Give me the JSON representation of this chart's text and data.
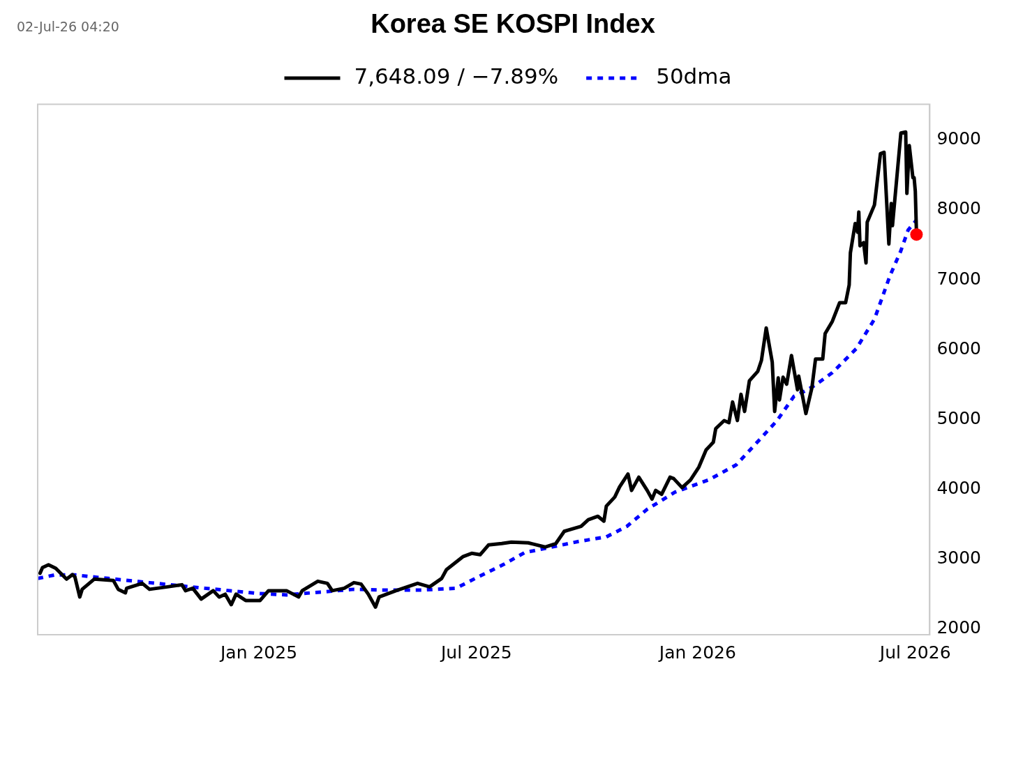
{
  "chart_data": {
    "type": "line",
    "title": "Korea SE KOSPI Index",
    "annotations": [
      "02-Jul-26 04:20"
    ],
    "legend": "top",
    "grid": false,
    "marker": "none",
    "xlim": [
      "2024-07-01",
      "2026-07-13"
    ],
    "xticks": [
      {
        "value": "2025-01-01",
        "label": "Jan 2025"
      },
      {
        "value": "2025-07-01",
        "label": "Jul 2025"
      },
      {
        "value": "2026-01-01",
        "label": "Jan 2026"
      },
      {
        "value": "2026-07-01",
        "label": "Jul 2026"
      }
    ],
    "ylim": [
      1920,
      9510
    ],
    "yticks": [
      2000,
      3000,
      4000,
      5000,
      6000,
      7000,
      8000,
      9000
    ],
    "series": [
      {
        "name": "7,648.09 / −7.89%",
        "color": "#000000",
        "line_style": "solid",
        "x": [
          "2024-07-03",
          "2024-07-05",
          "2024-07-10",
          "2024-07-16",
          "2024-07-25",
          "2024-07-30",
          "2024-08-01",
          "2024-08-05",
          "2024-08-07",
          "2024-08-17",
          "2024-09-02",
          "2024-09-06",
          "2024-09-12",
          "2024-09-13",
          "2024-09-26",
          "2024-10-02",
          "2024-10-17",
          "2024-10-29",
          "2024-11-01",
          "2024-11-07",
          "2024-11-14",
          "2024-11-24",
          "2024-11-29",
          "2024-12-04",
          "2024-12-09",
          "2024-12-13",
          "2024-12-21",
          "2025-01-02",
          "2025-01-09",
          "2025-01-24",
          "2025-02-03",
          "2025-02-06",
          "2025-02-19",
          "2025-02-27",
          "2025-03-03",
          "2025-03-13",
          "2025-03-21",
          "2025-03-27",
          "2025-04-02",
          "2025-04-08",
          "2025-04-11",
          "2025-04-25",
          "2025-05-13",
          "2025-05-23",
          "2025-06-02",
          "2025-06-06",
          "2025-06-20",
          "2025-06-27",
          "2025-07-04",
          "2025-07-11",
          "2025-07-22",
          "2025-07-30",
          "2025-08-13",
          "2025-08-27",
          "2025-09-05",
          "2025-09-12",
          "2025-09-26",
          "2025-10-02",
          "2025-10-10",
          "2025-10-15",
          "2025-10-17",
          "2025-10-24",
          "2025-10-28",
          "2025-11-04",
          "2025-11-07",
          "2025-11-13",
          "2025-11-20",
          "2025-11-24",
          "2025-11-27",
          "2025-12-02",
          "2025-12-09",
          "2025-12-12",
          "2025-12-19",
          "2025-12-26",
          "2026-01-02",
          "2026-01-08",
          "2026-01-14",
          "2026-01-16",
          "2026-01-23",
          "2026-01-27",
          "2026-01-30",
          "2026-02-03",
          "2026-02-06",
          "2026-02-09",
          "2026-02-13",
          "2026-02-20",
          "2026-02-23",
          "2026-02-27",
          "2026-03-04",
          "2026-03-06",
          "2026-03-09",
          "2026-03-10",
          "2026-03-13",
          "2026-03-16",
          "2026-03-20",
          "2026-03-25",
          "2026-03-26",
          "2026-04-01",
          "2026-04-06",
          "2026-04-09",
          "2026-04-15",
          "2026-04-17",
          "2026-04-23",
          "2026-04-29",
          "2026-05-04",
          "2026-05-07",
          "2026-05-08",
          "2026-05-12",
          "2026-05-14",
          "2026-05-15",
          "2026-05-16",
          "2026-05-19",
          "2026-05-21",
          "2026-05-22",
          "2026-05-28",
          "2026-05-29",
          "2026-06-02",
          "2026-06-05",
          "2026-06-09",
          "2026-06-11",
          "2026-06-12",
          "2026-06-19",
          "2026-06-23",
          "2026-06-24",
          "2026-06-26",
          "2026-06-29",
          "2026-06-30",
          "2026-07-01",
          "2026-07-02"
        ],
        "values": [
          2800,
          2880,
          2920,
          2870,
          2715,
          2780,
          2745,
          2460,
          2570,
          2715,
          2695,
          2570,
          2520,
          2585,
          2655,
          2570,
          2605,
          2635,
          2550,
          2585,
          2430,
          2550,
          2460,
          2500,
          2350,
          2500,
          2410,
          2410,
          2550,
          2550,
          2460,
          2550,
          2685,
          2655,
          2550,
          2585,
          2665,
          2645,
          2500,
          2315,
          2460,
          2550,
          2655,
          2605,
          2725,
          2850,
          3040,
          3085,
          3065,
          3205,
          3225,
          3245,
          3235,
          3175,
          3225,
          3400,
          3470,
          3565,
          3615,
          3545,
          3760,
          3890,
          4035,
          4220,
          3985,
          4175,
          3985,
          3860,
          3985,
          3930,
          4175,
          4155,
          4025,
          4135,
          4320,
          4565,
          4675,
          4870,
          4985,
          4955,
          5250,
          4985,
          5360,
          5115,
          5555,
          5690,
          5845,
          6310,
          5820,
          5115,
          5595,
          5280,
          5605,
          5505,
          5915,
          5425,
          5620,
          5085,
          5455,
          5865,
          5865,
          6230,
          6405,
          6670,
          6670,
          6925,
          7385,
          7805,
          7680,
          7970,
          7485,
          7530,
          7240,
          7825,
          8070,
          8215,
          8805,
          8825,
          7510,
          8090,
          7775,
          9100,
          9115,
          8235,
          8920,
          8460,
          8460,
          8265,
          7648.09
        ]
      },
      {
        "name": "50dma",
        "color": "#0000ff",
        "line_style": "dotted",
        "x": [
          "2024-07-01",
          "2024-07-15",
          "2024-08-01",
          "2024-08-29",
          "2024-10-02",
          "2024-11-17",
          "2025-01-01",
          "2025-01-24",
          "2025-02-21",
          "2025-03-21",
          "2025-04-13",
          "2025-05-17",
          "2025-06-14",
          "2025-07-01",
          "2025-07-24",
          "2025-08-10",
          "2025-08-27",
          "2025-09-24",
          "2025-10-17",
          "2025-11-03",
          "2025-11-20",
          "2025-12-13",
          "2026-01-10",
          "2026-02-02",
          "2026-02-23",
          "2026-03-08",
          "2026-03-22",
          "2026-03-31",
          "2026-04-09",
          "2026-04-23",
          "2026-05-13",
          "2026-05-28",
          "2026-06-10",
          "2026-06-19",
          "2026-06-25",
          "2026-07-02"
        ],
        "values": [
          2725,
          2775,
          2775,
          2725,
          2665,
          2585,
          2510,
          2490,
          2530,
          2570,
          2560,
          2560,
          2585,
          2735,
          2930,
          3095,
          3155,
          3255,
          3320,
          3470,
          3715,
          3960,
          4135,
          4350,
          4740,
          4985,
          5330,
          5405,
          5495,
          5670,
          6015,
          6435,
          7060,
          7415,
          7710,
          7855
        ]
      }
    ]
  }
}
